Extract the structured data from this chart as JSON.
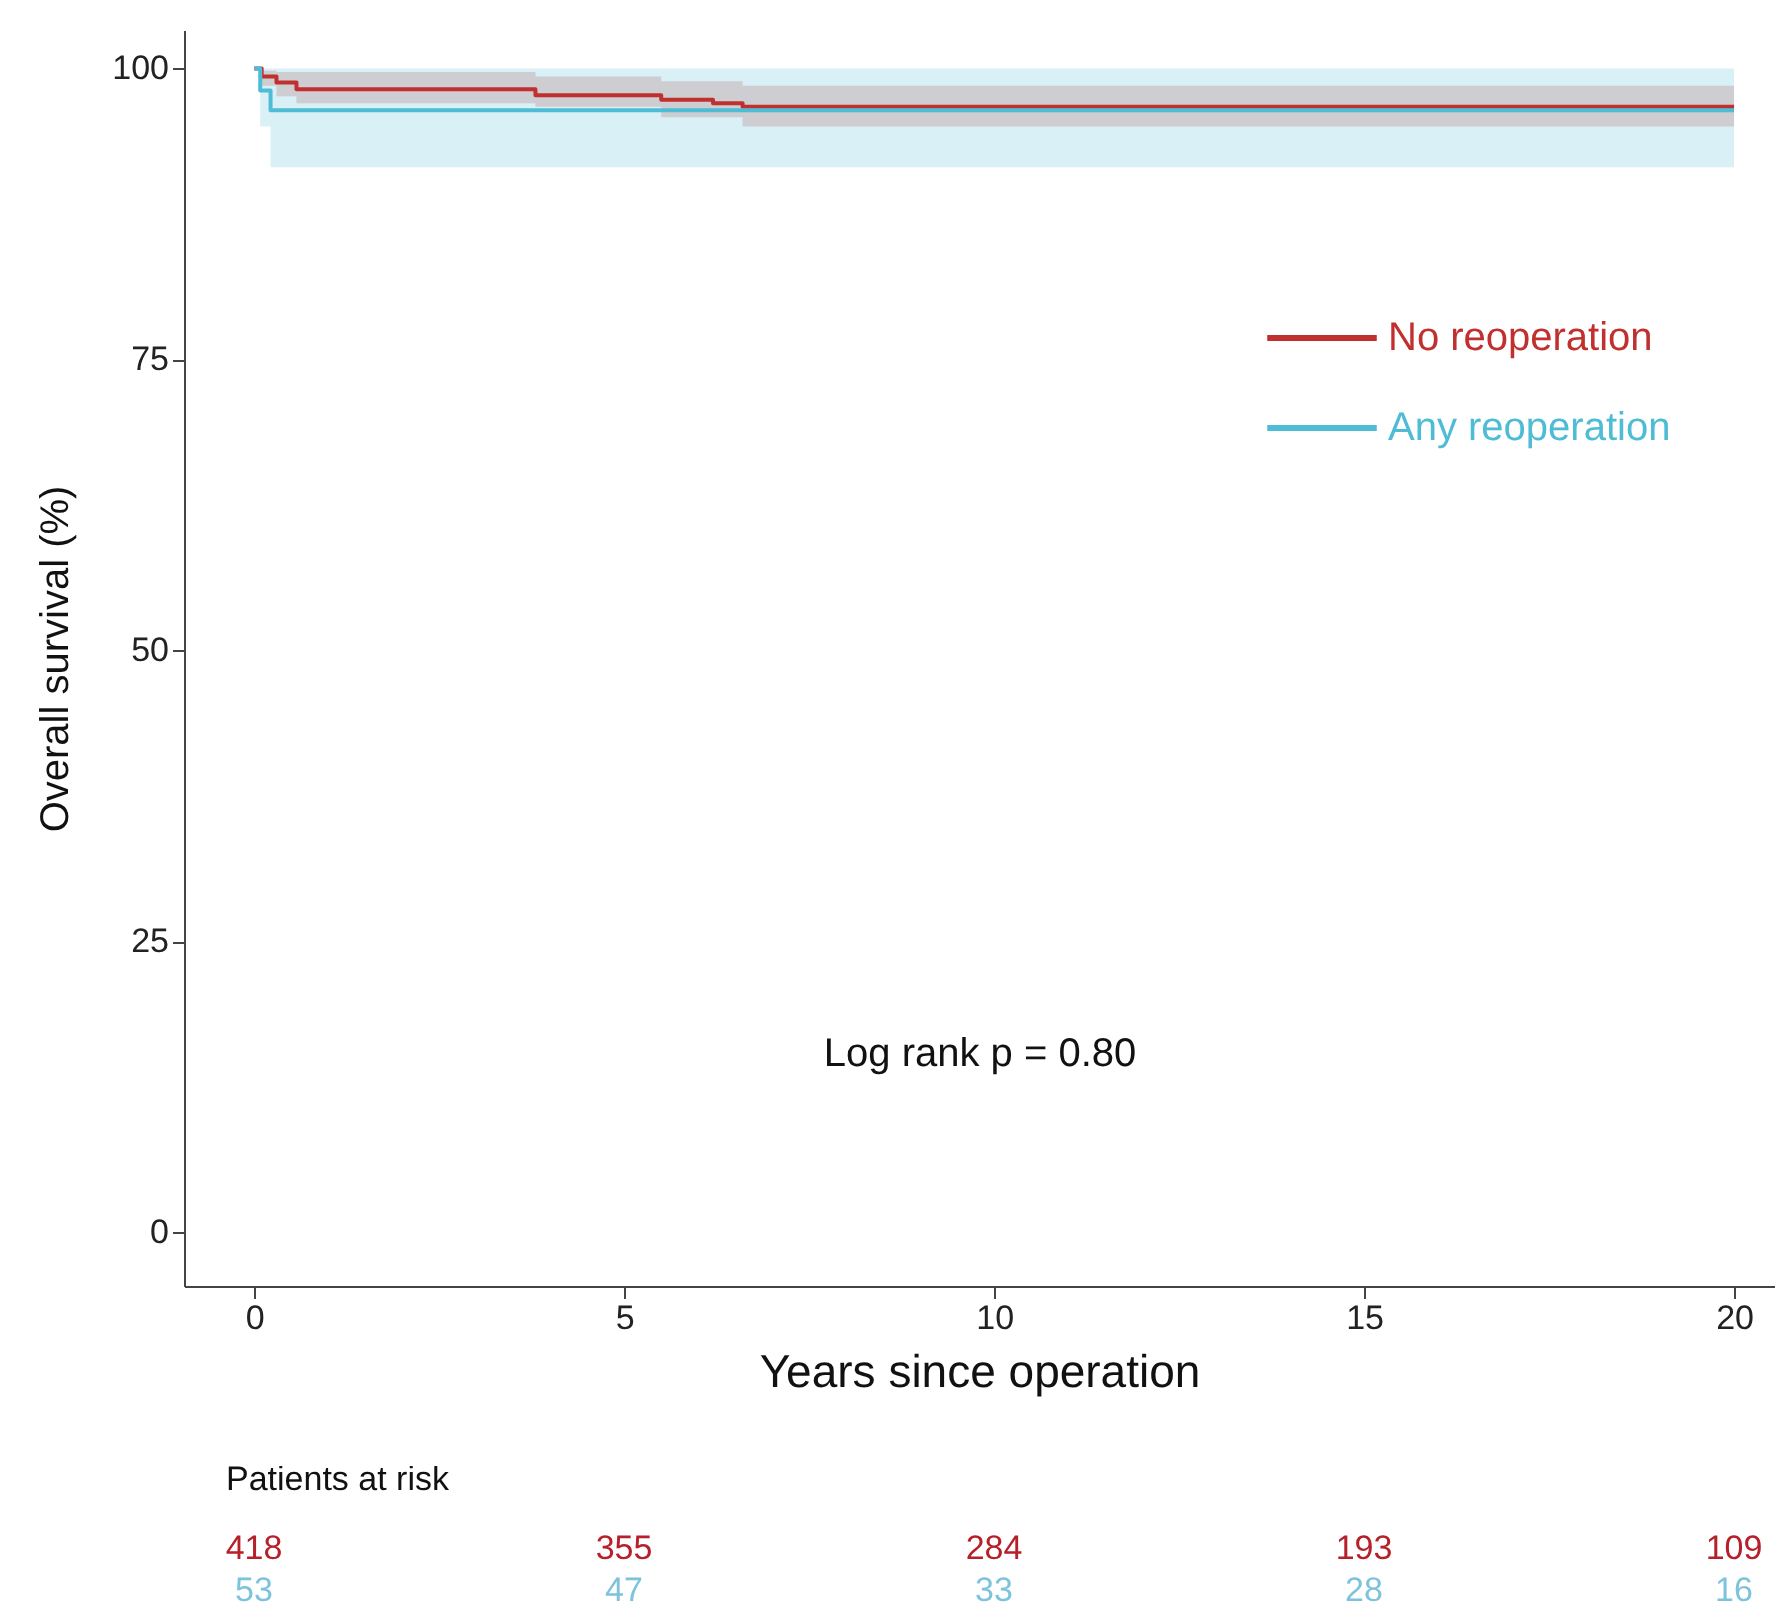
{
  "chart_data": [
    {
      "type": "step",
      "xlabel": "Years since operation",
      "ylabel": "Overall survival (%)",
      "xlim": [
        -0.95,
        20.54
      ],
      "ylim": [
        -4.6,
        103.3
      ],
      "xticks": [
        0,
        5,
        10,
        15,
        20
      ],
      "yticks": [
        0,
        25,
        50,
        75,
        100
      ],
      "legend": "top right",
      "annotations": [
        "Log rank p = 0.80"
      ],
      "series": [
        {
          "name": "No reoperation",
          "color": "#c0302f",
          "x": [
            0,
            0.1,
            0.3,
            0.57,
            3.8,
            5.5,
            6.2,
            6.6,
            20
          ],
          "values": [
            100,
            99.3,
            98.8,
            98.2,
            97.7,
            97.3,
            97.0,
            96.7,
            96.7
          ],
          "lower": [
            100,
            98.5,
            97.6,
            97.0,
            96.7,
            95.8,
            95.8,
            95.0,
            95.0
          ],
          "upper": [
            100,
            99.8,
            99.7,
            99.7,
            99.3,
            98.9,
            98.9,
            98.5,
            98.5
          ]
        },
        {
          "name": "Any reoperation",
          "color": "#4fbcd6",
          "x": [
            0,
            0.08,
            0.22,
            20
          ],
          "values": [
            100,
            98.1,
            96.4,
            96.4
          ],
          "lower": [
            100,
            95,
            91.5,
            91.5
          ],
          "upper": [
            100,
            100,
            100,
            100
          ]
        }
      ]
    },
    {
      "type": "other",
      "title": "Patients at risk",
      "annotations": [
        "418",
        "355",
        "284",
        "193",
        "109",
        "53",
        "47",
        "33",
        "28",
        "16"
      ],
      "colors": [
        "#b5202a",
        "#b5202a",
        "#b5202a",
        "#b5202a",
        "#b5202a",
        "#7ec3dc",
        "#7ec3dc",
        "#7ec3dc",
        "#7ec3dc",
        "#7ec3dc"
      ]
    }
  ]
}
